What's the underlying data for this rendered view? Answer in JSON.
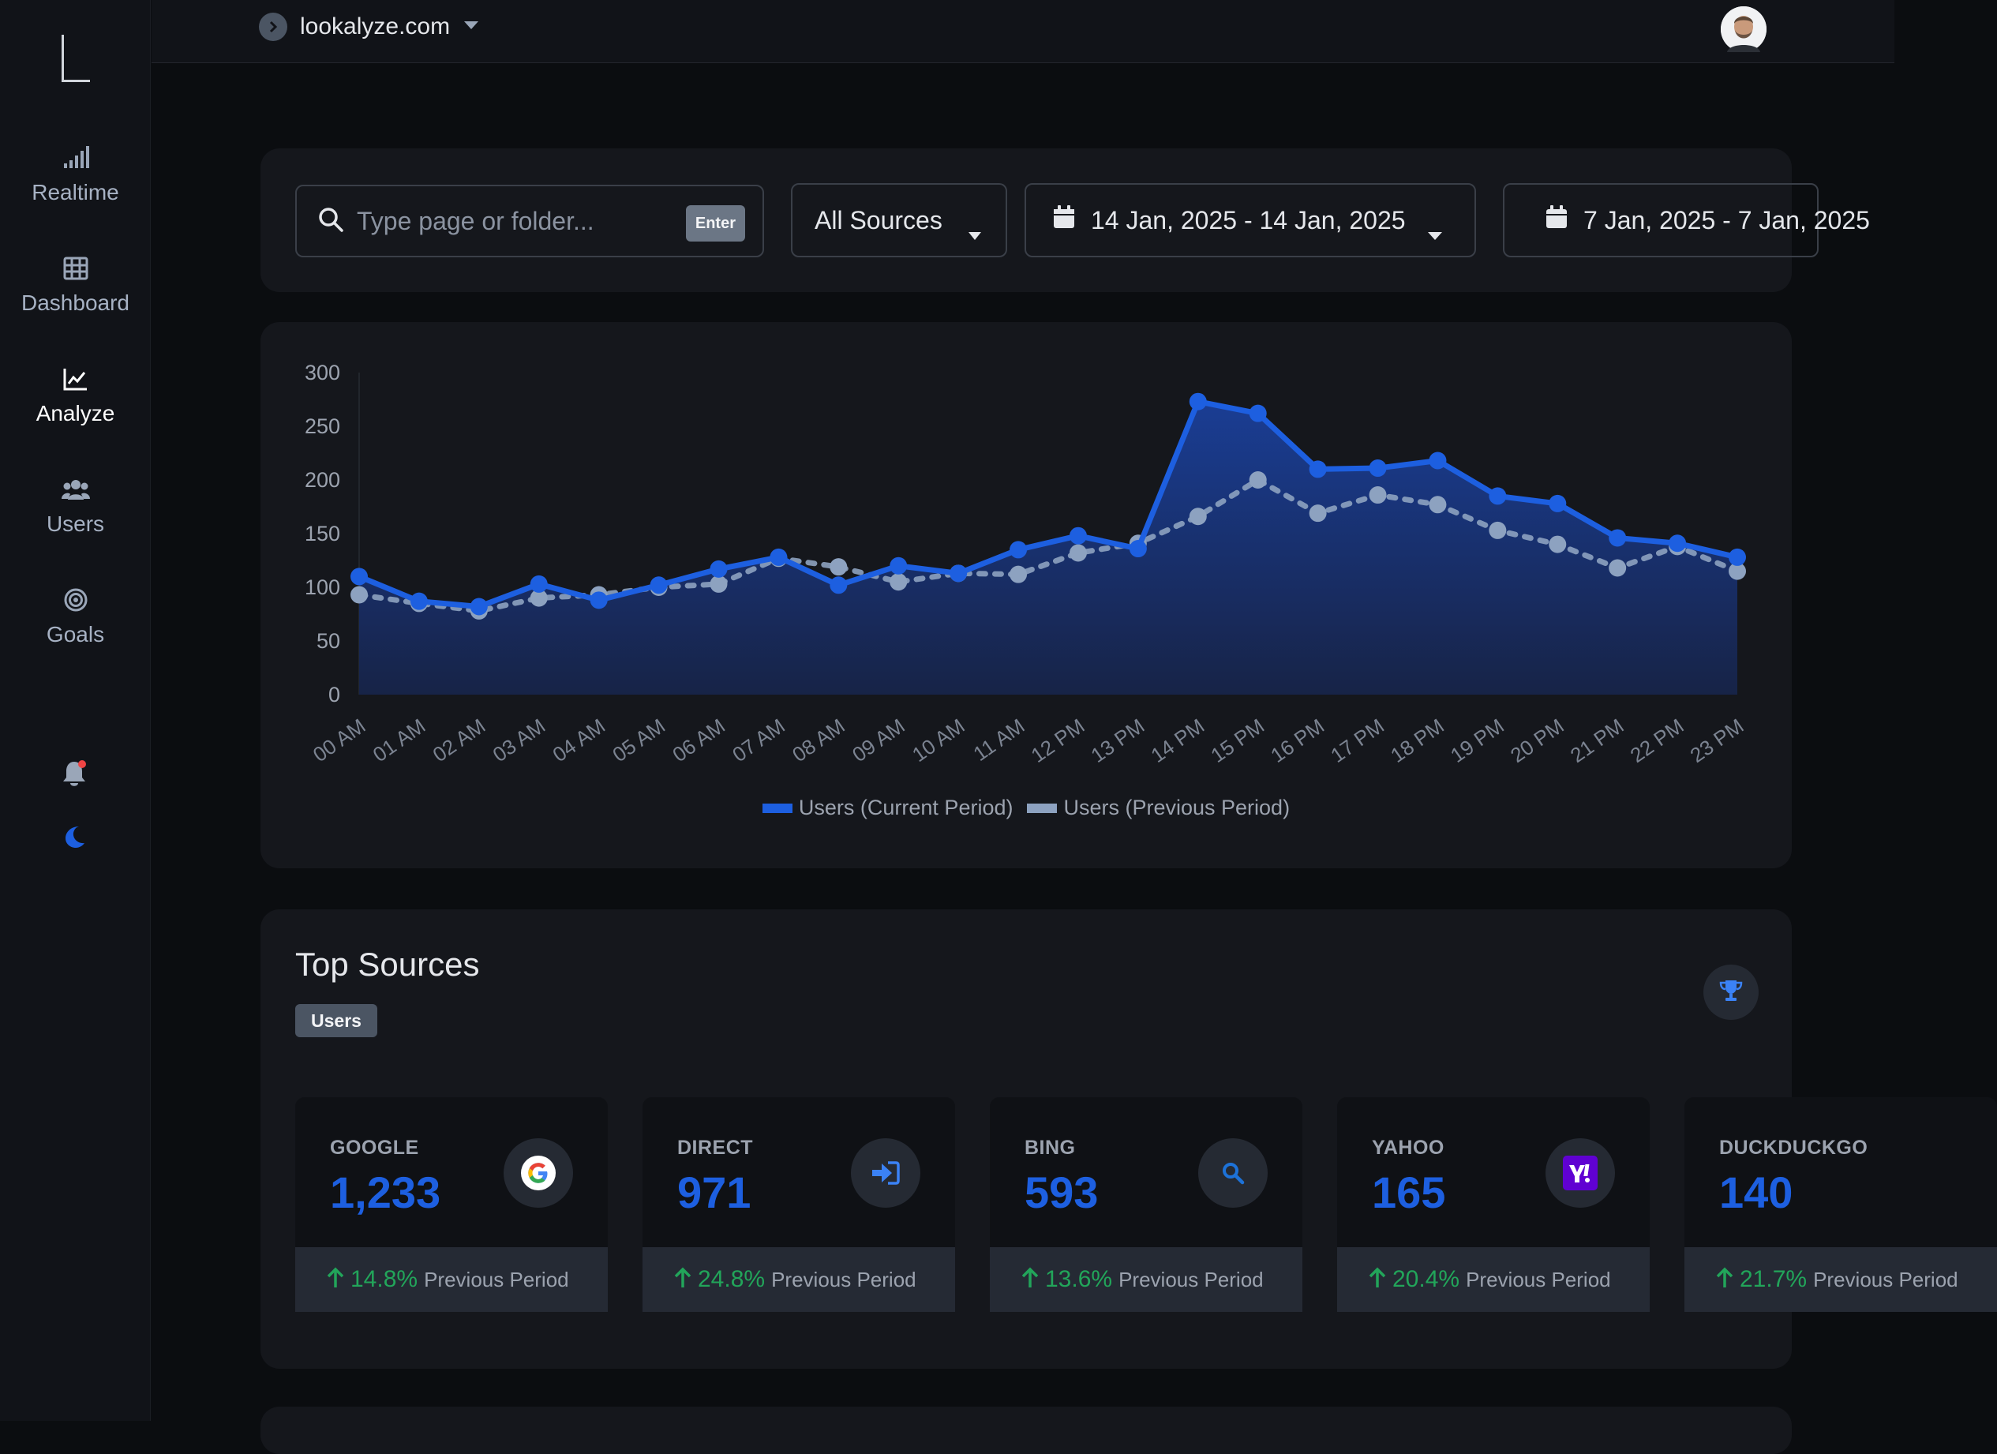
{
  "nav": {
    "items": [
      {
        "label": "Realtime",
        "icon": "signal-bars-icon"
      },
      {
        "label": "Dashboard",
        "icon": "grid-table-icon"
      },
      {
        "label": "Analyze",
        "icon": "line-chart-icon"
      },
      {
        "label": "Users",
        "icon": "users-group-icon"
      },
      {
        "label": "Goals",
        "icon": "target-icon"
      }
    ],
    "active": "Analyze"
  },
  "topbar": {
    "site": "lookalyze.com"
  },
  "filters": {
    "search_placeholder": "Type page or folder...",
    "enter_label": "Enter",
    "source": "All Sources",
    "date_current": "14 Jan, 2025 - 14 Jan, 2025",
    "date_previous": "7 Jan, 2025 - 7 Jan, 2025"
  },
  "chart_data": {
    "type": "line",
    "categories": [
      "00 AM",
      "01 AM",
      "02 AM",
      "03 AM",
      "04 AM",
      "05 AM",
      "06 AM",
      "07 AM",
      "08 AM",
      "09 AM",
      "10 AM",
      "11 AM",
      "12 PM",
      "13 PM",
      "14 PM",
      "15 PM",
      "16 PM",
      "17 PM",
      "18 PM",
      "19 PM",
      "20 PM",
      "21 PM",
      "22 PM",
      "23 PM"
    ],
    "series": [
      {
        "name": "Users (Current Period)",
        "values": [
          110,
          87,
          82,
          103,
          88,
          102,
          117,
          128,
          102,
          120,
          113,
          135,
          148,
          136,
          273,
          262,
          210,
          211,
          218,
          185,
          178,
          146,
          141,
          128
        ],
        "color": "#1d5fe0",
        "fill": true
      },
      {
        "name": "Users (Previous Period)",
        "values": [
          93,
          85,
          78,
          90,
          93,
          100,
          103,
          127,
          119,
          105,
          113,
          112,
          132,
          141,
          166,
          200,
          169,
          186,
          177,
          153,
          140,
          118,
          138,
          115
        ],
        "color": "#8da2c0",
        "dashed": true
      }
    ],
    "ylim": [
      0,
      300
    ],
    "yticks": [
      0,
      50,
      100,
      150,
      200,
      250,
      300
    ],
    "legend": "bottom"
  },
  "sources": {
    "title": "Top Sources",
    "metric": "Users",
    "caption": "Previous Period",
    "items": [
      {
        "name": "GOOGLE",
        "value": "1,233",
        "change": "14.8%",
        "icon": "google-icon"
      },
      {
        "name": "DIRECT",
        "value": "971",
        "change": "24.8%",
        "icon": "sign-in-icon"
      },
      {
        "name": "BING",
        "value": "593",
        "change": "13.6%",
        "icon": "search-icon"
      },
      {
        "name": "YAHOO",
        "value": "165",
        "change": "20.4%",
        "icon": "yahoo-icon"
      },
      {
        "name": "DUCKDUCKGO",
        "value": "140",
        "change": "21.7%",
        "icon": "duckduckgo-icon"
      }
    ]
  }
}
